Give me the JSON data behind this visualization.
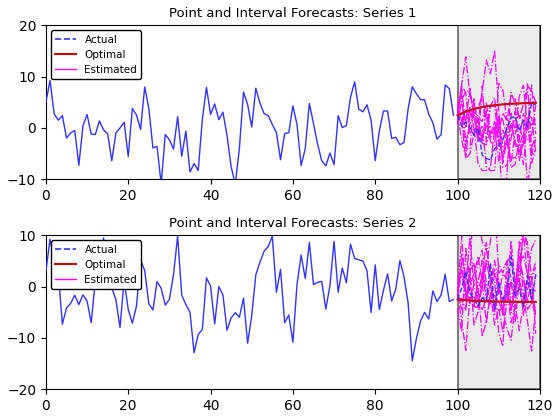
{
  "title1": "Point and Interval Forecasts: Series 1",
  "title2": "Point and Interval Forecasts: Series 2",
  "xlim": [
    0,
    120
  ],
  "ylim1": [
    -10,
    20
  ],
  "ylim2": [
    -20,
    10
  ],
  "forecast_start": 100,
  "forecast_end": 120,
  "n_history": 100,
  "n_forecast": 20,
  "legend_labels": [
    "Actual",
    "Optimal",
    "Estimated"
  ],
  "actual_color": "#3333FF",
  "optimal_color": "#CC0000",
  "estimated_color": "#FF00FF",
  "shade_color": "#EBEBEB",
  "shade_edge": "#666666",
  "background_color": "#FFFFFF",
  "xticks": [
    0,
    20,
    40,
    60,
    80,
    100,
    120
  ]
}
